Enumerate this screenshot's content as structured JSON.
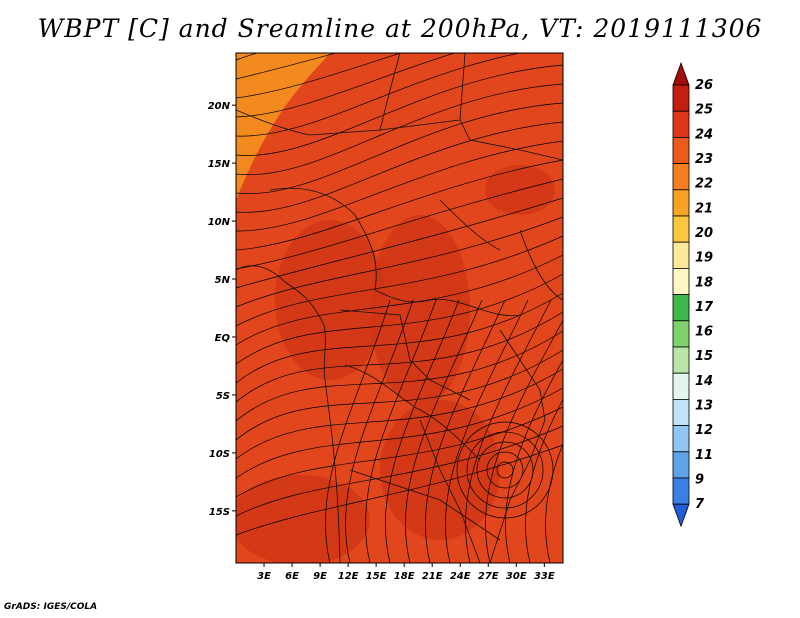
{
  "title": "WBPT [C] and Sreamline at 200hPa, VT: 2019111306",
  "credit": "GrADS: IGES/COLA",
  "map": {
    "lat_labels": [
      "20N",
      "15N",
      "10N",
      "5N",
      "EQ",
      "5S",
      "10S",
      "15S"
    ],
    "lat_values": [
      20,
      15,
      10,
      5,
      0,
      -5,
      -10,
      -15
    ],
    "lon_labels": [
      "3E",
      "6E",
      "9E",
      "12E",
      "15E",
      "18E",
      "21E",
      "24E",
      "27E",
      "30E",
      "33E"
    ],
    "lon_values": [
      3,
      6,
      9,
      12,
      15,
      18,
      21,
      24,
      27,
      30,
      33
    ],
    "lon_range": [
      0,
      35
    ],
    "lat_range": [
      -19.5,
      24.5
    ],
    "field_color": "#e2461c",
    "shade_color": "#cf3416",
    "north_color": "#f38a1e"
  },
  "colorbar": {
    "labels": [
      "26",
      "25",
      "24",
      "23",
      "22",
      "21",
      "20",
      "19",
      "18",
      "17",
      "16",
      "15",
      "14",
      "13",
      "12",
      "11",
      "9",
      "7"
    ],
    "colors": [
      "#a30e0b",
      "#c21f0e",
      "#de3717",
      "#ec5a1c",
      "#f57f1d",
      "#f9a325",
      "#fcc73c",
      "#fde99a",
      "#fdf7c2",
      "#3db64a",
      "#7dd26a",
      "#b9e6a6",
      "#e2f6ee",
      "#c2e4fb",
      "#8fc6f3",
      "#5ea2ea",
      "#3a80e2",
      "#1f5fd8"
    ]
  }
}
